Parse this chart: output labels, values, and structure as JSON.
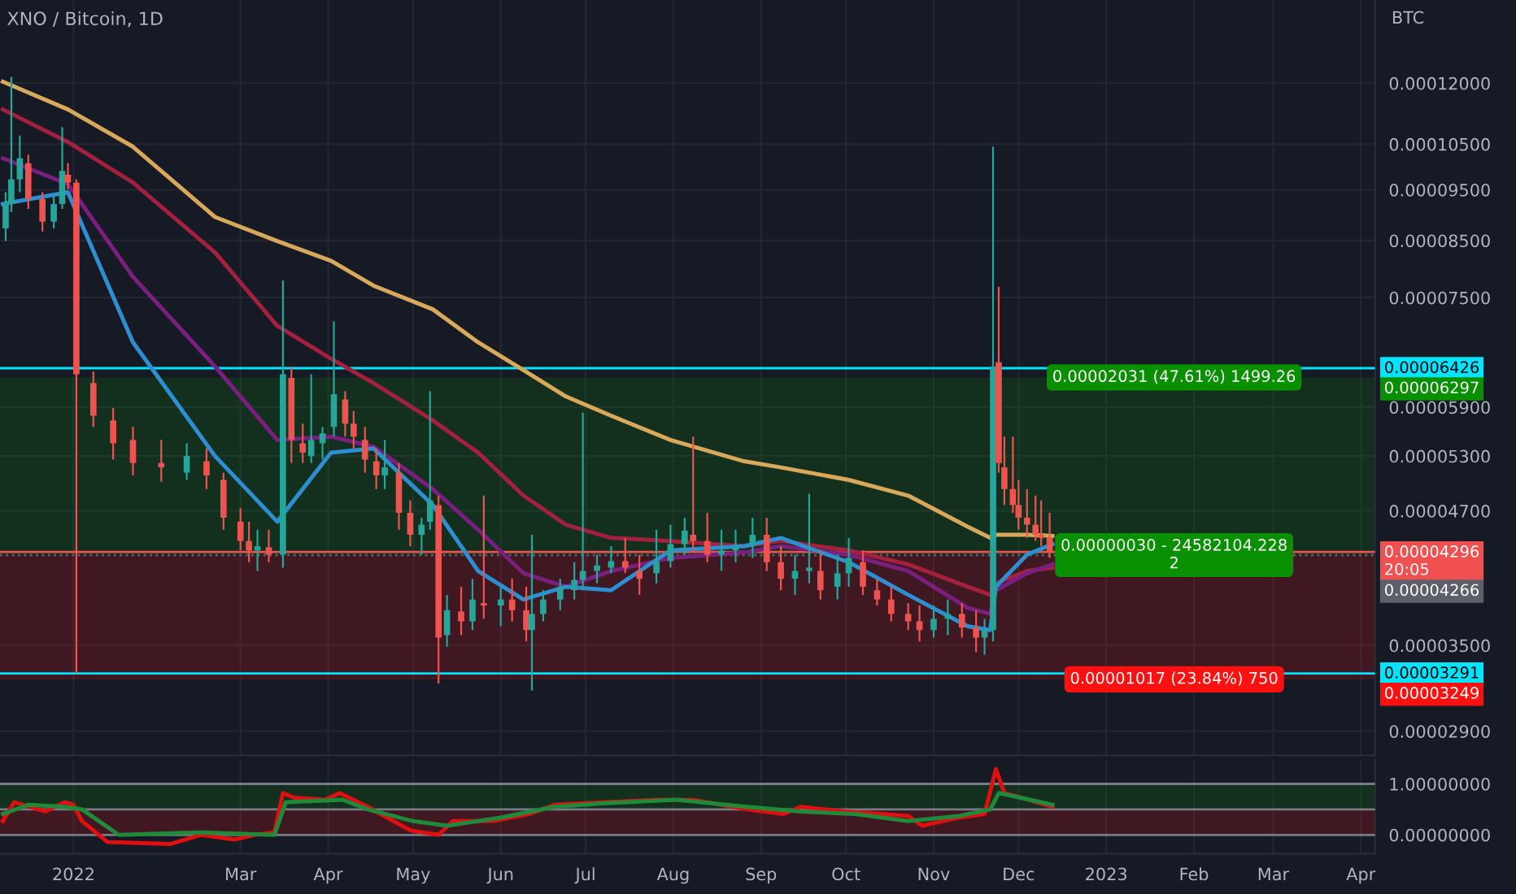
{
  "chart_data": [
    {
      "type": "candlestick",
      "title": "XNO / Bitcoin, 1D",
      "ylabel": "BTC",
      "log": true,
      "grid": true,
      "tick_labels": "y",
      "x": [
        "2021-12-08",
        "2021-12-10",
        "2021-12-13",
        "2021-12-16",
        "2021-12-21",
        "2021-12-25",
        "2021-12-28",
        "2021-12-30",
        "2022-01-02",
        "2022-01-08",
        "2022-01-15",
        "2022-01-22",
        "2022-02-01",
        "2022-02-10",
        "2022-02-17",
        "2022-02-23",
        "2022-03-01",
        "2022-03-04",
        "2022-03-07",
        "2022-03-11",
        "2022-03-16",
        "2022-03-19",
        "2022-03-23",
        "2022-03-26",
        "2022-03-30",
        "2022-04-03",
        "2022-04-07",
        "2022-04-10",
        "2022-04-14",
        "2022-04-18",
        "2022-04-21",
        "2022-04-26",
        "2022-04-30",
        "2022-05-04",
        "2022-05-07",
        "2022-05-10",
        "2022-05-13",
        "2022-05-18",
        "2022-05-22",
        "2022-05-26",
        "2022-06-01",
        "2022-06-05",
        "2022-06-10",
        "2022-06-12",
        "2022-06-16",
        "2022-06-22",
        "2022-06-27",
        "2022-06-30",
        "2022-07-05",
        "2022-07-10",
        "2022-07-15",
        "2022-07-20",
        "2022-07-26",
        "2022-07-31",
        "2022-08-05",
        "2022-08-08",
        "2022-08-13",
        "2022-08-18",
        "2022-08-23",
        "2022-08-29",
        "2022-09-03",
        "2022-09-08",
        "2022-09-13",
        "2022-09-18",
        "2022-09-22",
        "2022-09-28",
        "2022-10-02",
        "2022-10-07",
        "2022-10-12",
        "2022-10-17",
        "2022-10-23",
        "2022-10-27",
        "2022-11-01",
        "2022-11-06",
        "2022-11-11",
        "2022-11-16",
        "2022-11-19",
        "2022-11-22",
        "2022-11-24",
        "2022-11-26",
        "2022-11-29",
        "2022-12-01",
        "2022-12-04",
        "2022-12-07",
        "2022-12-09",
        "2022-12-12"
      ],
      "ohlc": [
        [
          8.73e-05,
          9.45e-05,
          8.49e-05,
          9.21e-05
        ],
        [
          9.21e-05,
          0.0001217,
          9.05e-05,
          9.72e-05
        ],
        [
          9.72e-05,
          0.000107,
          9.45e-05,
          0.0001018
        ],
        [
          0.0001007,
          0.0001026,
          9.11e-05,
          9.31e-05
        ],
        [
          9.31e-05,
          9.45e-05,
          8.67e-05,
          8.86e-05
        ],
        [
          8.86e-05,
          9.38e-05,
          8.73e-05,
          9.21e-05
        ],
        [
          9.21e-05,
          0.000109,
          9.11e-05,
          9.9e-05
        ],
        [
          9.82e-05,
          0.0001007,
          9.51e-05,
          9.65e-05
        ],
        [
          9.65e-05,
          9.72e-05,
          3.29e-05,
          6.34e-05
        ],
        [
          6.22e-05,
          6.38e-05,
          5.65e-05,
          5.79e-05
        ],
        [
          5.73e-05,
          5.89e-05,
          5.26e-05,
          5.45e-05
        ],
        [
          5.49e-05,
          5.65e-05,
          5.08e-05,
          5.22e-05
        ],
        [
          5.22e-05,
          5.49e-05,
          5.01e-05,
          5.17e-05
        ],
        [
          5.11e-05,
          5.45e-05,
          5.03e-05,
          5.3e-05
        ],
        [
          5.24e-05,
          5.39e-05,
          4.93e-05,
          5.08e-05
        ],
        [
          5.03e-05,
          5.11e-05,
          4.51e-05,
          4.63e-05
        ],
        [
          4.59e-05,
          4.73e-05,
          4.31e-05,
          4.4e-05
        ],
        [
          4.4e-05,
          4.59e-05,
          4.2e-05,
          4.31e-05
        ],
        [
          4.31e-05,
          4.51e-05,
          4.12e-05,
          4.35e-05
        ],
        [
          4.34e-05,
          4.51e-05,
          4.2e-05,
          4.27e-05
        ],
        [
          4.27e-05,
          7.79e-05,
          4.15e-05,
          6.34e-05
        ],
        [
          6.29e-05,
          6.45e-05,
          5.22e-05,
          5.49e-05
        ],
        [
          5.45e-05,
          5.69e-05,
          5.22e-05,
          5.34e-05
        ],
        [
          5.3e-05,
          6.34e-05,
          5.22e-05,
          5.49e-05
        ],
        [
          5.45e-05,
          5.65e-05,
          5.26e-05,
          5.57e-05
        ],
        [
          5.65e-05,
          7.12e-05,
          5.53e-05,
          6.07e-05
        ],
        [
          6e-05,
          6.11e-05,
          5.53e-05,
          5.69e-05
        ],
        [
          5.69e-05,
          5.85e-05,
          5.39e-05,
          5.53e-05
        ],
        [
          5.49e-05,
          5.65e-05,
          5.11e-05,
          5.26e-05
        ],
        [
          5.24e-05,
          5.39e-05,
          4.93e-05,
          5.08e-05
        ],
        [
          5.08e-05,
          5.49e-05,
          4.93e-05,
          5.17e-05
        ],
        [
          5.11e-05,
          5.22e-05,
          4.51e-05,
          4.68e-05
        ],
        [
          4.68e-05,
          4.81e-05,
          4.35e-05,
          4.46e-05
        ],
        [
          4.46e-05,
          4.63e-05,
          4.27e-05,
          4.56e-05
        ],
        [
          4.59e-05,
          6.11e-05,
          4.51e-05,
          4.81e-05
        ],
        [
          4.76e-05,
          4.86e-05,
          3.22e-05,
          3.56e-05
        ],
        [
          3.58e-05,
          3.91e-05,
          3.49e-05,
          3.78e-05
        ],
        [
          3.77e-05,
          3.98e-05,
          3.58e-05,
          3.69e-05
        ],
        [
          3.69e-05,
          4.05e-05,
          3.62e-05,
          3.87e-05
        ],
        [
          3.84e-05,
          4.86e-05,
          3.71e-05,
          3.82e-05
        ],
        [
          3.82e-05,
          3.98e-05,
          3.65e-05,
          3.87e-05
        ],
        [
          3.87e-05,
          4.05e-05,
          3.69e-05,
          3.78e-05
        ],
        [
          3.78e-05,
          3.98e-05,
          3.53e-05,
          3.62e-05
        ],
        [
          3.62e-05,
          4.46e-05,
          3.17e-05,
          3.75e-05
        ],
        [
          3.75e-05,
          3.95e-05,
          3.69e-05,
          3.87e-05
        ],
        [
          3.87e-05,
          4.05e-05,
          3.78e-05,
          3.98e-05
        ],
        [
          3.95e-05,
          4.2e-05,
          3.87e-05,
          4.04e-05
        ],
        [
          4.04e-05,
          5.83e-05,
          3.95e-05,
          4.12e-05
        ],
        [
          4.12e-05,
          4.27e-05,
          4.01e-05,
          4.17e-05
        ],
        [
          4.15e-05,
          4.35e-05,
          4.1e-05,
          4.21e-05
        ],
        [
          4.21e-05,
          4.43e-05,
          4.1e-05,
          4.15e-05
        ],
        [
          4.12e-05,
          4.27e-05,
          3.91e-05,
          4.05e-05
        ],
        [
          4.1e-05,
          4.51e-05,
          4.01e-05,
          4.21e-05
        ],
        [
          4.21e-05,
          4.56e-05,
          4.15e-05,
          4.37e-05
        ],
        [
          4.37e-05,
          4.63e-05,
          4.27e-05,
          4.5e-05
        ],
        [
          4.46e-05,
          5.53e-05,
          4.31e-05,
          4.4e-05
        ],
        [
          4.4e-05,
          4.68e-05,
          4.2e-05,
          4.27e-05
        ],
        [
          4.27e-05,
          4.51e-05,
          4.12e-05,
          4.31e-05
        ],
        [
          4.31e-05,
          4.51e-05,
          4.2e-05,
          4.35e-05
        ],
        [
          4.37e-05,
          4.63e-05,
          4.24e-05,
          4.46e-05
        ],
        [
          4.46e-05,
          4.63e-05,
          4.12e-05,
          4.2e-05
        ],
        [
          4.2e-05,
          4.35e-05,
          3.95e-05,
          4.05e-05
        ],
        [
          4.05e-05,
          4.27e-05,
          3.91e-05,
          4.12e-05
        ],
        [
          4.12e-05,
          4.88e-05,
          4.01e-05,
          4.15e-05
        ],
        [
          4.12e-05,
          4.31e-05,
          3.87e-05,
          3.95e-05
        ],
        [
          3.98e-05,
          4.27e-05,
          3.87e-05,
          4.1e-05
        ],
        [
          4.1e-05,
          4.43e-05,
          3.98e-05,
          4.24e-05
        ],
        [
          4.2e-05,
          4.31e-05,
          3.91e-05,
          3.98e-05
        ],
        [
          3.95e-05,
          4.05e-05,
          3.82e-05,
          3.87e-05
        ],
        [
          3.87e-05,
          3.98e-05,
          3.69e-05,
          3.75e-05
        ],
        [
          3.75e-05,
          3.84e-05,
          3.62e-05,
          3.69e-05
        ],
        [
          3.69e-05,
          3.82e-05,
          3.53e-05,
          3.62e-05
        ],
        [
          3.62e-05,
          3.82e-05,
          3.56e-05,
          3.71e-05
        ],
        [
          3.71e-05,
          3.87e-05,
          3.58e-05,
          3.75e-05
        ],
        [
          3.75e-05,
          3.84e-05,
          3.56e-05,
          3.64e-05
        ],
        [
          3.64e-05,
          3.78e-05,
          3.45e-05,
          3.56e-05
        ],
        [
          3.56e-05,
          3.71e-05,
          3.43e-05,
          3.62e-05
        ],
        [
          3.62e-05,
          0.0001044,
          3.53e-05,
          6.45e-05
        ],
        [
          6.51e-05,
          7.68e-05,
          5.11e-05,
          5.22e-05
        ],
        [
          5.17e-05,
          5.53e-05,
          4.76e-05,
          4.93e-05
        ],
        [
          4.93e-05,
          5.53e-05,
          4.68e-05,
          4.76e-05
        ],
        [
          4.76e-05,
          5.03e-05,
          4.51e-05,
          4.63e-05
        ],
        [
          4.63e-05,
          4.93e-05,
          4.43e-05,
          4.56e-05
        ],
        [
          4.56e-05,
          4.86e-05,
          4.4e-05,
          4.46e-05
        ],
        [
          4.46e-05,
          4.81e-05,
          4.35e-05,
          4.43e-05
        ],
        [
          4.43e-05,
          4.68e-05,
          4.24e-05,
          4.296e-05
        ]
      ],
      "series": [
        {
          "type": "line",
          "color": "#d9a95b",
          "x": [
            "2021-12-07",
            "2021-12-30",
            "2022-01-22",
            "2022-02-20",
            "2022-03-14",
            "2022-04-02",
            "2022-04-17",
            "2022-05-08",
            "2022-05-24",
            "2022-06-09",
            "2022-06-24",
            "2022-07-10",
            "2022-07-31",
            "2022-08-26",
            "2022-09-08",
            "2022-10-02",
            "2022-10-23",
            "2022-11-13",
            "2022-11-21",
            "2022-11-23",
            "2022-12-04",
            "2022-12-13"
          ],
          "values": [
            0.0001204,
            0.0001133,
            0.0001044,
            8.95e-05,
            8.49e-05,
            8.13e-05,
            7.7e-05,
            7.31e-05,
            6.8e-05,
            6.4e-05,
            6.04e-05,
            5.79e-05,
            5.49e-05,
            5.24e-05,
            5.17e-05,
            5.03e-05,
            4.86e-05,
            4.54e-05,
            4.43e-05,
            4.46e-05,
            4.46e-05,
            4.45e-05
          ]
        },
        {
          "type": "line",
          "color": "#a3213f",
          "x": [
            "2021-12-07",
            "2021-12-30",
            "2022-01-22",
            "2022-02-20",
            "2022-03-14",
            "2022-04-02",
            "2022-04-17",
            "2022-05-08",
            "2022-05-24",
            "2022-06-09",
            "2022-06-24",
            "2022-07-10",
            "2022-07-31",
            "2022-08-26",
            "2022-09-08",
            "2022-10-02",
            "2022-10-23",
            "2022-11-13",
            "2022-11-21",
            "2022-11-23",
            "2022-12-04",
            "2022-12-13"
          ],
          "values": [
            0.0001133,
            0.0001055,
            9.65e-05,
            8.28e-05,
            7.05e-05,
            6.56e-05,
            6.22e-05,
            5.73e-05,
            5.34e-05,
            4.86e-05,
            4.56e-05,
            4.43e-05,
            4.4e-05,
            4.35e-05,
            4.4e-05,
            4.31e-05,
            4.18e-05,
            3.98e-05,
            3.91e-05,
            4.01e-05,
            4.12e-05,
            4.15e-05
          ]
        },
        {
          "type": "line",
          "color": "#7b1f7f",
          "x": [
            "2021-12-07",
            "2021-12-30",
            "2022-01-22",
            "2022-02-20",
            "2022-03-14",
            "2022-04-02",
            "2022-04-17",
            "2022-05-08",
            "2022-05-24",
            "2022-06-09",
            "2022-06-24",
            "2022-07-10",
            "2022-07-31",
            "2022-08-26",
            "2022-09-08",
            "2022-10-02",
            "2022-10-23",
            "2022-11-13",
            "2022-11-21",
            "2022-11-23",
            "2022-12-04",
            "2022-12-13"
          ],
          "values": [
            0.0001018,
            9.62e-05,
            7.85e-05,
            6.45e-05,
            5.49e-05,
            5.53e-05,
            5.41e-05,
            4.93e-05,
            4.51e-05,
            4.1e-05,
            3.98e-05,
            4.12e-05,
            4.24e-05,
            4.29e-05,
            4.35e-05,
            4.27e-05,
            4.12e-05,
            3.8e-05,
            3.75e-05,
            3.95e-05,
            4.1e-05,
            4.18e-05
          ]
        },
        {
          "type": "line",
          "color": "#2d8fd1",
          "x": [
            "2021-12-07",
            "2021-12-30",
            "2022-01-22",
            "2022-02-20",
            "2022-03-14",
            "2022-04-02",
            "2022-04-17",
            "2022-05-08",
            "2022-05-24",
            "2022-06-09",
            "2022-06-24",
            "2022-07-10",
            "2022-07-31",
            "2022-08-26",
            "2022-09-08",
            "2022-10-02",
            "2022-10-23",
            "2022-11-13",
            "2022-11-21",
            "2022-11-23",
            "2022-12-04",
            "2022-12-13"
          ],
          "values": [
            9.21e-05,
            9.45e-05,
            6.8e-05,
            5.3e-05,
            4.59e-05,
            5.34e-05,
            5.39e-05,
            4.76e-05,
            4.12e-05,
            3.87e-05,
            3.98e-05,
            3.95e-05,
            4.31e-05,
            4.35e-05,
            4.43e-05,
            4.2e-05,
            3.91e-05,
            3.65e-05,
            3.62e-05,
            3.98e-05,
            4.27e-05,
            4.37e-05
          ]
        }
      ],
      "xlim": [
        "2021-12-06",
        "2023-04-06"
      ],
      "xticks": [
        {
          "value": "2022-01-01",
          "label": null
        },
        {
          "value": "2022-03-01",
          "label": null
        },
        {
          "value": "2022-04-01",
          "label": null
        },
        {
          "value": "2022-05-01",
          "label": null
        },
        {
          "value": "2022-06-01",
          "label": null
        },
        {
          "value": "2022-07-01",
          "label": null
        },
        {
          "value": "2022-08-01",
          "label": null
        },
        {
          "value": "2022-09-01",
          "label": null
        },
        {
          "value": "2022-10-01",
          "label": null
        },
        {
          "value": "2022-11-01",
          "label": null
        },
        {
          "value": "2022-12-01",
          "label": null
        },
        {
          "value": "2023-01-01",
          "label": null
        },
        {
          "value": "2023-02-01",
          "label": null
        },
        {
          "value": "2023-03-01",
          "label": null
        },
        {
          "value": "2023-04-01",
          "label": null
        }
      ],
      "ylim": [
        2.75e-05,
        0.000144
      ],
      "yticks": [
        {
          "value": 2.9e-05,
          "label": "0.00002900"
        },
        {
          "value": 3.5e-05,
          "label": "0.00003500"
        },
        {
          "value": 4.7e-05,
          "label": "0.00004700"
        },
        {
          "value": 5.3e-05,
          "label": "0.00005300"
        },
        {
          "value": 5.9e-05,
          "label": "0.00005900"
        },
        {
          "value": 7.5e-05,
          "label": "0.00007500"
        },
        {
          "value": 8.5e-05,
          "label": "0.00008500"
        },
        {
          "value": 9.5e-05,
          "label": "0.00009500"
        },
        {
          "value": 0.000105,
          "label": "0.00010500"
        },
        {
          "value": 0.00012,
          "label": "0.00012000"
        }
      ],
      "ref_lines": [
        {
          "axis": "y",
          "value": 6.426e-05,
          "label": "0.00006426",
          "color": "#00e5ff",
          "line_style": "solid"
        },
        {
          "axis": "y",
          "value": 3.291e-05,
          "label": "0.00003291",
          "color": "#00e5ff",
          "line_style": "solid"
        },
        {
          "axis": "y",
          "value": 4.296e-05,
          "label": "0.00004296\n20:05",
          "color": "#f0504f",
          "line_style": "solid"
        },
        {
          "axis": "y",
          "value": 4.266e-05,
          "label": "0.00004266",
          "color": "#5d606b",
          "line_style": "dotted"
        }
      ],
      "bands": [
        {
          "axis": "y",
          "from": 4.266e-05,
          "to": 6.297e-05,
          "label": "0.00006297",
          "color": "#089000"
        },
        {
          "axis": "y",
          "from": 4.266e-05,
          "to": 3.249e-05,
          "label": "0.00003249",
          "color": "#ff1010"
        }
      ],
      "annotations": [
        {
          "text": "0.00002031 (47.61%) 1499.26",
          "x": "2023-01-25",
          "y": 6.297e-05
        },
        {
          "text": "0.00000030 - 24582104.228\n2",
          "x": "2023-01-25",
          "y": 4.266e-05
        },
        {
          "text": "0.00001017 (23.84%) 750",
          "x": "2023-01-25",
          "y": 3.249e-05
        }
      ]
    },
    {
      "type": "line",
      "grid": true,
      "series": [
        {
          "color": "#e01010",
          "x": [
            "2021-12-07",
            "2021-12-11",
            "2021-12-22",
            "2021-12-29",
            "2022-01-01",
            "2022-01-04",
            "2022-01-13",
            "2022-02-04",
            "2022-02-15",
            "2022-02-27",
            "2022-03-06",
            "2022-03-13",
            "2022-03-16",
            "2022-03-20",
            "2022-03-31",
            "2022-04-05",
            "2022-04-15",
            "2022-04-30",
            "2022-05-10",
            "2022-05-15",
            "2022-05-29",
            "2022-06-11",
            "2022-06-20",
            "2022-07-08",
            "2022-07-27",
            "2022-08-09",
            "2022-08-27",
            "2022-09-09",
            "2022-09-15",
            "2022-10-01",
            "2022-10-23",
            "2022-10-28",
            "2022-11-10",
            "2022-11-19",
            "2022-11-23",
            "2022-11-26",
            "2022-12-02",
            "2022-12-13"
          ],
          "values": [
            0.27,
            0.64,
            0.46,
            0.64,
            0.59,
            0.27,
            -0.14,
            -0.18,
            0.0,
            -0.09,
            0.0,
            0.05,
            0.82,
            0.73,
            0.69,
            0.82,
            0.55,
            0.09,
            0.0,
            0.27,
            0.27,
            0.41,
            0.59,
            0.64,
            0.69,
            0.68,
            0.5,
            0.41,
            0.55,
            0.46,
            0.37,
            0.18,
            0.34,
            0.41,
            1.29,
            0.82,
            0.73,
            0.55
          ]
        },
        {
          "color": "#1f8a3a",
          "x": [
            "2021-12-07",
            "2021-12-16",
            "2021-12-29",
            "2022-01-04",
            "2022-01-17",
            "2022-02-15",
            "2022-03-13",
            "2022-03-17",
            "2022-04-06",
            "2022-04-15",
            "2022-05-01",
            "2022-05-13",
            "2022-06-01",
            "2022-06-20",
            "2022-07-08",
            "2022-08-02",
            "2022-08-27",
            "2022-09-15",
            "2022-10-04",
            "2022-10-23",
            "2022-11-10",
            "2022-11-21",
            "2022-11-24",
            "2022-12-05",
            "2022-12-13"
          ],
          "values": [
            0.41,
            0.59,
            0.55,
            0.5,
            0.0,
            0.05,
            0.0,
            0.64,
            0.69,
            0.5,
            0.27,
            0.18,
            0.34,
            0.55,
            0.62,
            0.69,
            0.55,
            0.46,
            0.41,
            0.27,
            0.37,
            0.5,
            0.82,
            0.69,
            0.59
          ]
        }
      ],
      "xlim": [
        "2021-12-06",
        "2023-04-06"
      ],
      "xticks": [
        {
          "value": "2022-01-01",
          "label": "2022"
        },
        {
          "value": "2022-03-01",
          "label": "Mar"
        },
        {
          "value": "2022-04-01",
          "label": "Apr"
        },
        {
          "value": "2022-05-01",
          "label": "May"
        },
        {
          "value": "2022-06-01",
          "label": "Jun"
        },
        {
          "value": "2022-07-01",
          "label": "Jul"
        },
        {
          "value": "2022-08-01",
          "label": "Aug"
        },
        {
          "value": "2022-09-01",
          "label": "Sep"
        },
        {
          "value": "2022-10-01",
          "label": "Oct"
        },
        {
          "value": "2022-11-01",
          "label": "Nov"
        },
        {
          "value": "2022-12-01",
          "label": "Dec"
        },
        {
          "value": "2023-01-01",
          "label": "2023"
        },
        {
          "value": "2023-02-01",
          "label": "Feb"
        },
        {
          "value": "2023-03-01",
          "label": "Mar"
        },
        {
          "value": "2023-04-01",
          "label": "Apr"
        }
      ],
      "ylim": [
        -0.37,
        1.47
      ],
      "yticks": [
        {
          "value": 0,
          "label": "0.00000000"
        },
        {
          "value": 1,
          "label": "1.00000000"
        }
      ],
      "ref_lines": [
        {
          "axis": "y",
          "value": 1,
          "color": "#787b86",
          "line_style": "solid"
        },
        {
          "axis": "y",
          "value": 0.5,
          "color": "#787b86",
          "line_style": "solid"
        },
        {
          "axis": "y",
          "value": 0,
          "color": "#787b86",
          "line_style": "solid"
        }
      ],
      "bands": [
        {
          "axis": "y",
          "from": 0.5,
          "to": 1,
          "color": "#089000"
        },
        {
          "axis": "y",
          "from": 0,
          "to": 0.5,
          "color": "#ff1010"
        }
      ]
    }
  ]
}
